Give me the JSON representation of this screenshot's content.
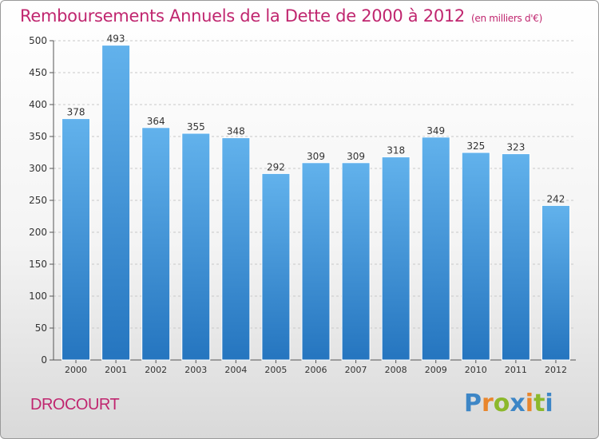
{
  "title": "Remboursements Annuels de la Dette de 2000 à 2012",
  "unit": "(en milliers d'€)",
  "commune": "DROCOURT",
  "logo": {
    "text": "Proxiti",
    "colors": [
      "#3d86c6",
      "#e9862c",
      "#8cb82b",
      "#3d86c6",
      "#e9862c",
      "#8cb82b",
      "#3d86c6"
    ]
  },
  "colors": {
    "bar": "#3a8fd8",
    "bar_light": "#62b2ec",
    "bar_dark": "#2575bf",
    "title": "#c0266f",
    "grid": "#c8c8c8"
  },
  "chart_data": {
    "type": "bar",
    "categories": [
      "2000",
      "2001",
      "2002",
      "2003",
      "2004",
      "2005",
      "2006",
      "2007",
      "2008",
      "2009",
      "2010",
      "2011",
      "2012"
    ],
    "values": [
      378,
      493,
      364,
      355,
      348,
      292,
      309,
      309,
      318,
      349,
      325,
      323,
      242
    ],
    "ylim": [
      0,
      500
    ],
    "yticks": [
      0,
      50,
      100,
      150,
      200,
      250,
      300,
      350,
      400,
      450,
      500
    ],
    "grid": true,
    "xlabel": "",
    "ylabel": ""
  }
}
